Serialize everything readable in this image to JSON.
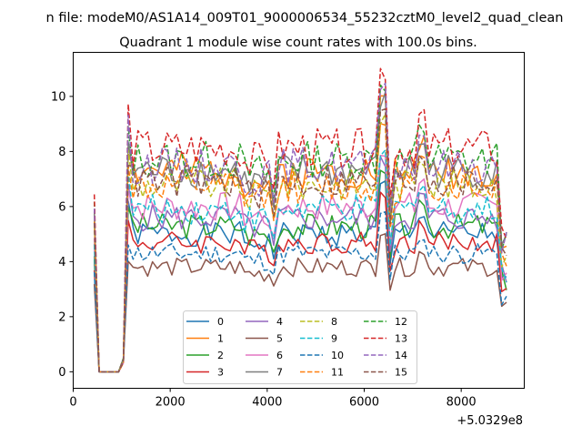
{
  "figure": {
    "suptitle": "n file: modeM0/AS1A14_009T01_9000006534_55232cztM0_level2_quad_clean",
    "title": "Quadrant 1 module wise count rates with 100.0s bins.",
    "offset_label": "+5.0329e8"
  },
  "chart_data": {
    "type": "line",
    "title": "Quadrant 1 module wise count rates with 100.0s bins.",
    "xlabel": "",
    "ylabel": "",
    "x_offset": 503290000,
    "xlim": [
      0,
      9300
    ],
    "ylim": [
      -0.6,
      11.6
    ],
    "xticks": [
      0,
      2000,
      4000,
      6000,
      8000
    ],
    "yticks": [
      0,
      2,
      4,
      6,
      8,
      10
    ],
    "grid": false,
    "legend_placement": "lower center",
    "legend_columns": 4,
    "x_start": 435,
    "x_end": 8935,
    "x_step": 100,
    "series": [
      {
        "name": "0",
        "color": "#1f77b4",
        "dash": "solid",
        "level": 5.0,
        "seed": 1
      },
      {
        "name": "1",
        "color": "#ff7f0e",
        "dash": "solid",
        "level": 7.3,
        "seed": 2
      },
      {
        "name": "2",
        "color": "#2ca02c",
        "dash": "solid",
        "level": 5.3,
        "seed": 3
      },
      {
        "name": "3",
        "color": "#d62728",
        "dash": "solid",
        "level": 4.7,
        "seed": 4
      },
      {
        "name": "4",
        "color": "#9467bd",
        "dash": "solid",
        "level": 5.6,
        "seed": 5
      },
      {
        "name": "5",
        "color": "#8c564b",
        "dash": "solid",
        "level": 3.8,
        "seed": 6
      },
      {
        "name": "6",
        "color": "#e377c2",
        "dash": "solid",
        "level": 6.0,
        "seed": 7
      },
      {
        "name": "7",
        "color": "#7f7f7f",
        "dash": "solid",
        "level": 7.3,
        "seed": 8
      },
      {
        "name": "8",
        "color": "#bcbd22",
        "dash": "dashed",
        "level": 6.8,
        "seed": 9
      },
      {
        "name": "9",
        "color": "#17becf",
        "dash": "dashed",
        "level": 5.9,
        "seed": 10
      },
      {
        "name": "10",
        "color": "#1f77b4",
        "dash": "dashed",
        "level": 4.3,
        "seed": 11
      },
      {
        "name": "11",
        "color": "#ff7f0e",
        "dash": "dashed",
        "level": 6.7,
        "seed": 12
      },
      {
        "name": "12",
        "color": "#2ca02c",
        "dash": "dashed",
        "level": 7.7,
        "seed": 13
      },
      {
        "name": "13",
        "color": "#d62728",
        "dash": "dashed",
        "level": 8.1,
        "seed": 14
      },
      {
        "name": "14",
        "color": "#9467bd",
        "dash": "dashed",
        "level": 7.5,
        "seed": 15
      },
      {
        "name": "15",
        "color": "#8c564b",
        "dash": "dashed",
        "level": 6.9,
        "seed": 16
      }
    ]
  }
}
